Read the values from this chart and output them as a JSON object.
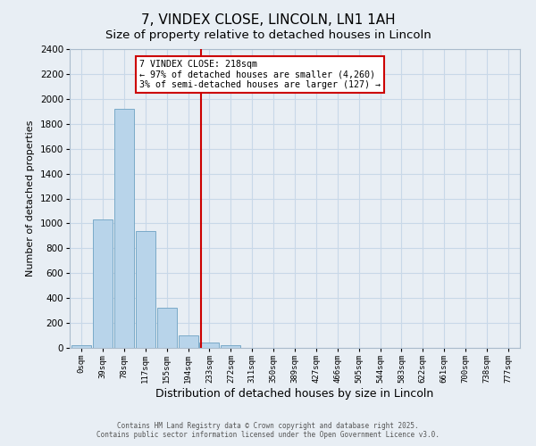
{
  "title": "7, VINDEX CLOSE, LINCOLN, LN1 1AH",
  "subtitle": "Size of property relative to detached houses in Lincoln",
  "xlabel": "Distribution of detached houses by size in Lincoln",
  "ylabel": "Number of detached properties",
  "bar_labels": [
    "0sqm",
    "39sqm",
    "78sqm",
    "117sqm",
    "155sqm",
    "194sqm",
    "233sqm",
    "272sqm",
    "311sqm",
    "350sqm",
    "389sqm",
    "427sqm",
    "466sqm",
    "505sqm",
    "544sqm",
    "583sqm",
    "622sqm",
    "661sqm",
    "700sqm",
    "738sqm",
    "777sqm"
  ],
  "bar_values": [
    20,
    1030,
    1920,
    940,
    320,
    100,
    45,
    22,
    0,
    0,
    0,
    0,
    0,
    0,
    0,
    0,
    0,
    0,
    0,
    0,
    0
  ],
  "bar_color": "#b8d4ea",
  "bar_edge_color": "#7aaac8",
  "vline_color": "#cc0000",
  "ylim": [
    0,
    2400
  ],
  "yticks": [
    0,
    200,
    400,
    600,
    800,
    1000,
    1200,
    1400,
    1600,
    1800,
    2000,
    2200,
    2400
  ],
  "annotation_title": "7 VINDEX CLOSE: 218sqm",
  "annotation_line1": "← 97% of detached houses are smaller (4,260)",
  "annotation_line2": "3% of semi-detached houses are larger (127) →",
  "annotation_box_color": "#ffffff",
  "annotation_box_edge": "#cc0000",
  "footer1": "Contains HM Land Registry data © Crown copyright and database right 2025.",
  "footer2": "Contains public sector information licensed under the Open Government Licence v3.0.",
  "background_color": "#e8eef4",
  "plot_bg_color": "#e8eef4",
  "grid_color": "#c8d8e8",
  "title_fontsize": 11,
  "subtitle_fontsize": 9.5
}
